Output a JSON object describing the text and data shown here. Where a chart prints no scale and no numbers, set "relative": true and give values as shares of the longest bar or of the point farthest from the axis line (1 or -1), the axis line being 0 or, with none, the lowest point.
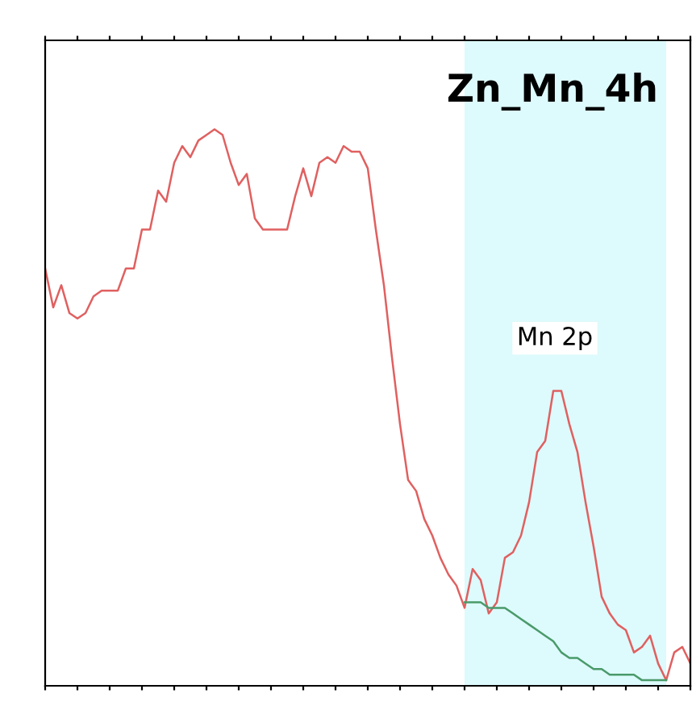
{
  "chart_data": {
    "type": "line",
    "title": "Zn_Mn_4h",
    "relative": true,
    "categories": [
      null,
      null,
      null,
      null,
      null,
      null,
      null,
      null,
      null,
      null,
      null,
      null,
      null,
      null,
      null,
      null,
      null,
      null,
      null,
      null,
      null,
      null,
      null,
      null,
      null,
      null,
      null,
      null,
      null,
      null,
      null,
      null,
      null,
      null,
      null,
      null,
      null,
      null,
      null,
      null,
      null,
      null,
      null,
      null,
      null,
      null,
      null,
      null,
      null,
      null,
      null,
      null,
      null,
      null,
      null,
      null,
      null,
      null,
      null,
      null,
      null,
      null,
      null,
      null,
      null,
      null,
      null,
      null,
      null,
      null,
      null,
      null,
      null,
      null,
      null,
      null,
      null,
      null,
      null,
      null,
      null
    ],
    "series": [
      {
        "color": "#e06060",
        "values": [
          0.75,
          0.68,
          0.72,
          0.67,
          0.66,
          0.67,
          0.7,
          0.71,
          0.71,
          0.71,
          0.75,
          0.75,
          0.82,
          0.82,
          0.89,
          0.87,
          0.94,
          0.97,
          0.95,
          0.98,
          0.99,
          1,
          0.99,
          0.94,
          0.9,
          0.92,
          0.84,
          0.82,
          0.82,
          0.82,
          0.82,
          0.88,
          0.93,
          0.88,
          0.94,
          0.95,
          0.94,
          0.97,
          0.96,
          0.96,
          0.93,
          0.82,
          0.72,
          0.59,
          0.47,
          0.37,
          0.35,
          0.3,
          0.27,
          0.23,
          0.2,
          0.18,
          0.14,
          0.21,
          0.19,
          0.13,
          0.15,
          0.23,
          0.24,
          0.27,
          0.33,
          0.42,
          0.44,
          0.53,
          0.53,
          0.47,
          0.42,
          0.33,
          0.25,
          0.16,
          0.13,
          0.11,
          0.1,
          0.06,
          0.07,
          0.09,
          0.04,
          0.01,
          0.06,
          0.07,
          0.04
        ]
      },
      {
        "color": "#4a9a6a",
        "values": [
          null,
          null,
          null,
          null,
          null,
          null,
          null,
          null,
          null,
          null,
          null,
          null,
          null,
          null,
          null,
          null,
          null,
          null,
          null,
          null,
          null,
          null,
          null,
          null,
          null,
          null,
          null,
          null,
          null,
          null,
          null,
          null,
          null,
          null,
          null,
          null,
          null,
          null,
          null,
          null,
          null,
          null,
          null,
          null,
          null,
          null,
          null,
          null,
          null,
          null,
          null,
          null,
          0.15,
          0.15,
          0.15,
          0.14,
          0.14,
          0.14,
          0.13,
          0.12,
          0.11,
          0.1,
          0.09,
          0.08,
          0.06,
          0.05,
          0.05,
          0.04,
          0.03,
          0.03,
          0.02,
          0.02,
          0.02,
          0.02,
          0.01,
          0.01,
          0.01,
          0.01,
          null,
          null,
          null
        ]
      }
    ],
    "annotations": [
      "Mn 2p"
    ]
  }
}
